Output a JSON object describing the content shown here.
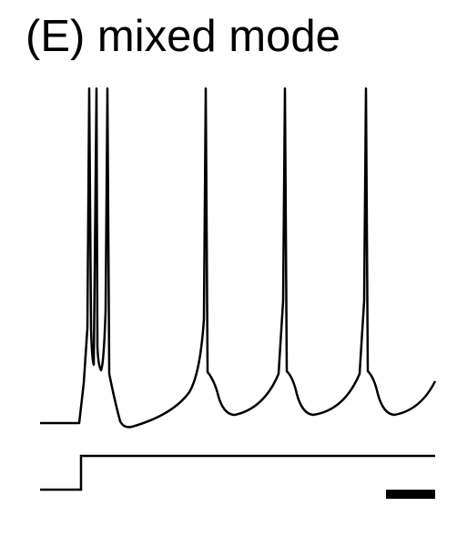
{
  "title": "(E) mixed mode",
  "colors": {
    "trace": "#000000",
    "background": "#ffffff"
  }
}
